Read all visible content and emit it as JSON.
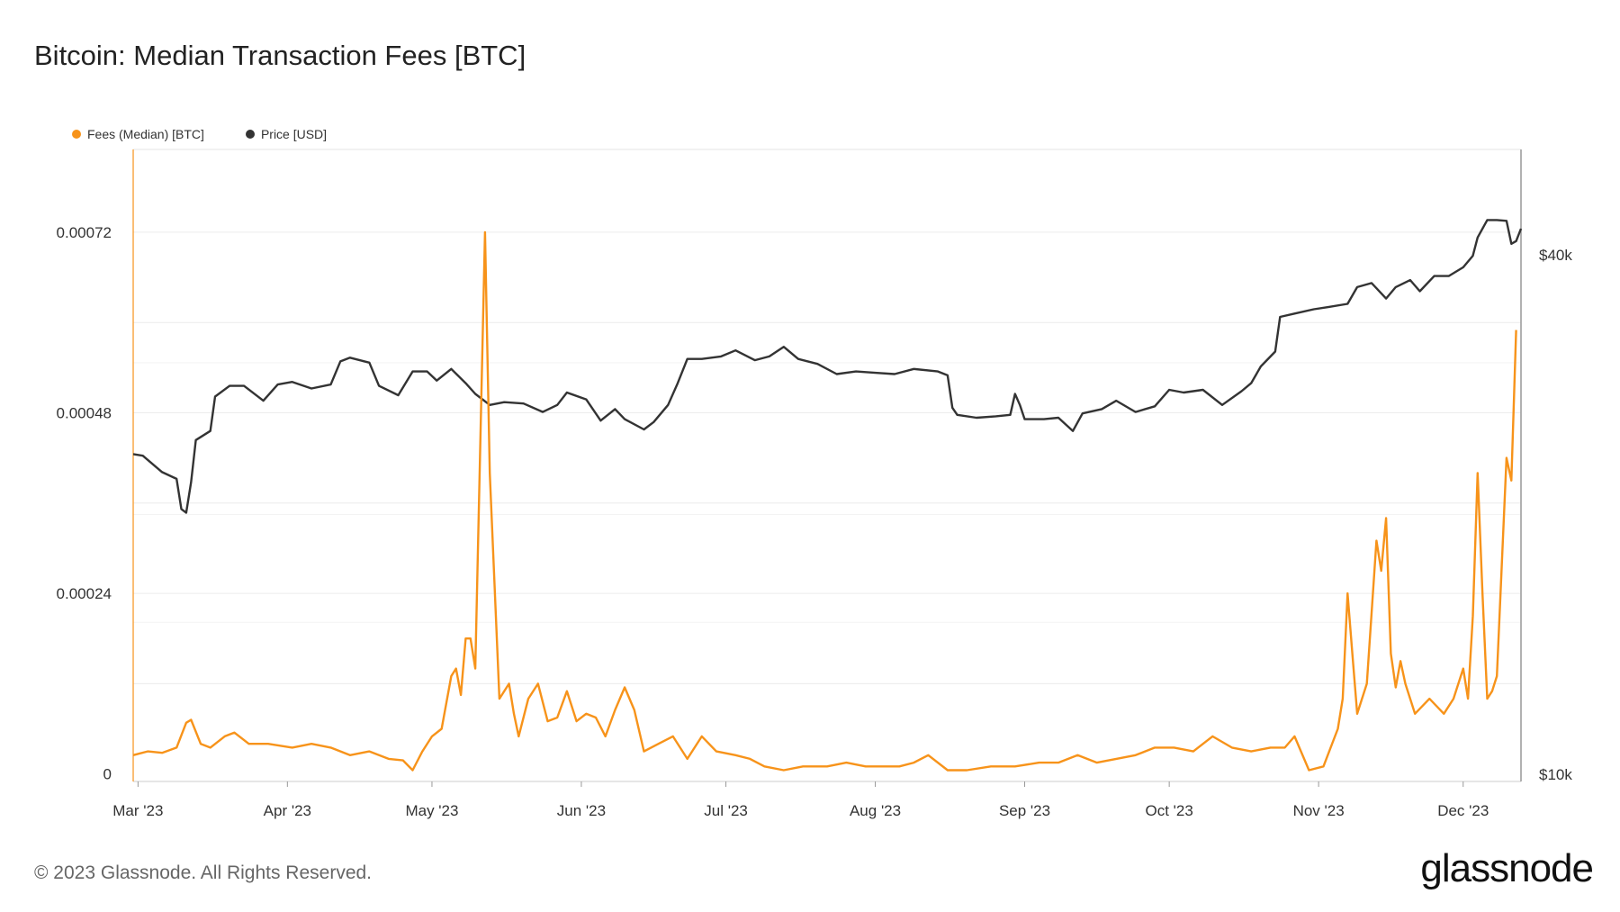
{
  "header": {
    "title": "Bitcoin: Median Transaction Fees [BTC]"
  },
  "footer": {
    "copyright": "© 2023 Glassnode. All Rights Reserved.",
    "logo": "glassnode"
  },
  "colors": {
    "fees": "#f7931a",
    "price": "#333333",
    "grid": "#ececec",
    "axis": "#bbbbbb"
  },
  "chart_data": {
    "type": "line",
    "title": "Bitcoin: Median Transaction Fees [BTC]",
    "legend_position": "top-left",
    "grid": true,
    "x_range": [
      "2023-02-28",
      "2023-12-13"
    ],
    "x_ticks": [
      {
        "label": "Mar '23",
        "date": "2023-03-01"
      },
      {
        "label": "Apr '23",
        "date": "2023-04-01"
      },
      {
        "label": "May '23",
        "date": "2023-05-01"
      },
      {
        "label": "Jun '23",
        "date": "2023-06-01"
      },
      {
        "label": "Jul '23",
        "date": "2023-07-01"
      },
      {
        "label": "Aug '23",
        "date": "2023-08-01"
      },
      {
        "label": "Sep '23",
        "date": "2023-09-01"
      },
      {
        "label": "Oct '23",
        "date": "2023-10-01"
      },
      {
        "label": "Nov '23",
        "date": "2023-11-01"
      },
      {
        "label": "Dec '23",
        "date": "2023-12-01"
      }
    ],
    "y_left": {
      "ticks": [
        {
          "label": "0",
          "value": 0
        },
        {
          "label": "0.00024",
          "value": 0.00024
        },
        {
          "label": "0.00048",
          "value": 0.00048
        },
        {
          "label": "0.00072",
          "value": 0.00072
        }
      ],
      "range": [
        -1e-05,
        0.00083
      ]
    },
    "y_right": {
      "scale": "log",
      "ticks": [
        {
          "label": "$10k",
          "value": 10000
        },
        {
          "label": "$40k",
          "value": 40000
        }
      ],
      "range": [
        10000,
        53000
      ]
    },
    "series": [
      {
        "name": "Fees (Median) [BTC]",
        "axis": "left",
        "points": [
          [
            "2023-02-28",
            2.5e-05
          ],
          [
            "2023-03-03",
            3e-05
          ],
          [
            "2023-03-06",
            2.8e-05
          ],
          [
            "2023-03-09",
            3.5e-05
          ],
          [
            "2023-03-11",
            6.8e-05
          ],
          [
            "2023-03-12",
            7.2e-05
          ],
          [
            "2023-03-14",
            4e-05
          ],
          [
            "2023-03-16",
            3.5e-05
          ],
          [
            "2023-03-19",
            5e-05
          ],
          [
            "2023-03-21",
            5.5e-05
          ],
          [
            "2023-03-24",
            4e-05
          ],
          [
            "2023-03-28",
            4e-05
          ],
          [
            "2023-04-02",
            3.5e-05
          ],
          [
            "2023-04-06",
            4e-05
          ],
          [
            "2023-04-10",
            3.5e-05
          ],
          [
            "2023-04-14",
            2.5e-05
          ],
          [
            "2023-04-18",
            3e-05
          ],
          [
            "2023-04-22",
            2e-05
          ],
          [
            "2023-04-25",
            1.8e-05
          ],
          [
            "2023-04-27",
            5e-06
          ],
          [
            "2023-04-29",
            3e-05
          ],
          [
            "2023-05-01",
            5e-05
          ],
          [
            "2023-05-03",
            6e-05
          ],
          [
            "2023-05-05",
            0.00013
          ],
          [
            "2023-05-06",
            0.00014
          ],
          [
            "2023-05-07",
            0.000105
          ],
          [
            "2023-05-08",
            0.00018
          ],
          [
            "2023-05-09",
            0.00018
          ],
          [
            "2023-05-10",
            0.00014
          ],
          [
            "2023-05-12",
            0.00072
          ],
          [
            "2023-05-13",
            0.0004
          ],
          [
            "2023-05-15",
            0.0001
          ],
          [
            "2023-05-17",
            0.00012
          ],
          [
            "2023-05-18",
            8e-05
          ],
          [
            "2023-05-19",
            5e-05
          ],
          [
            "2023-05-21",
            0.0001
          ],
          [
            "2023-05-23",
            0.00012
          ],
          [
            "2023-05-25",
            7e-05
          ],
          [
            "2023-05-27",
            7.5e-05
          ],
          [
            "2023-05-29",
            0.00011
          ],
          [
            "2023-05-31",
            7e-05
          ],
          [
            "2023-06-02",
            8e-05
          ],
          [
            "2023-06-04",
            7.5e-05
          ],
          [
            "2023-06-06",
            5e-05
          ],
          [
            "2023-06-08",
            8.5e-05
          ],
          [
            "2023-06-10",
            0.000115
          ],
          [
            "2023-06-12",
            8.5e-05
          ],
          [
            "2023-06-14",
            3e-05
          ],
          [
            "2023-06-17",
            4e-05
          ],
          [
            "2023-06-20",
            5e-05
          ],
          [
            "2023-06-23",
            2e-05
          ],
          [
            "2023-06-26",
            5e-05
          ],
          [
            "2023-06-29",
            3e-05
          ],
          [
            "2023-07-03",
            2.5e-05
          ],
          [
            "2023-07-06",
            2e-05
          ],
          [
            "2023-07-09",
            1e-05
          ],
          [
            "2023-07-13",
            5e-06
          ],
          [
            "2023-07-17",
            1e-05
          ],
          [
            "2023-07-22",
            1e-05
          ],
          [
            "2023-07-26",
            1.5e-05
          ],
          [
            "2023-07-30",
            1e-05
          ],
          [
            "2023-08-03",
            1e-05
          ],
          [
            "2023-08-06",
            1e-05
          ],
          [
            "2023-08-09",
            1.5e-05
          ],
          [
            "2023-08-12",
            2.5e-05
          ],
          [
            "2023-08-16",
            5e-06
          ],
          [
            "2023-08-20",
            5e-06
          ],
          [
            "2023-08-25",
            1e-05
          ],
          [
            "2023-08-30",
            1e-05
          ],
          [
            "2023-09-04",
            1.5e-05
          ],
          [
            "2023-09-08",
            1.5e-05
          ],
          [
            "2023-09-12",
            2.5e-05
          ],
          [
            "2023-09-16",
            1.5e-05
          ],
          [
            "2023-09-20",
            2e-05
          ],
          [
            "2023-09-24",
            2.5e-05
          ],
          [
            "2023-09-28",
            3.5e-05
          ],
          [
            "2023-10-02",
            3.5e-05
          ],
          [
            "2023-10-06",
            3e-05
          ],
          [
            "2023-10-10",
            5e-05
          ],
          [
            "2023-10-14",
            3.5e-05
          ],
          [
            "2023-10-18",
            3e-05
          ],
          [
            "2023-10-22",
            3.5e-05
          ],
          [
            "2023-10-25",
            3.5e-05
          ],
          [
            "2023-10-27",
            5e-05
          ],
          [
            "2023-10-30",
            5e-06
          ],
          [
            "2023-11-02",
            1e-05
          ],
          [
            "2023-11-05",
            6e-05
          ],
          [
            "2023-11-06",
            0.0001
          ],
          [
            "2023-11-07",
            0.00024
          ],
          [
            "2023-11-08",
            0.00016
          ],
          [
            "2023-11-09",
            8e-05
          ],
          [
            "2023-11-11",
            0.00012
          ],
          [
            "2023-11-13",
            0.00031
          ],
          [
            "2023-11-14",
            0.00027
          ],
          [
            "2023-11-15",
            0.00034
          ],
          [
            "2023-11-16",
            0.00016
          ],
          [
            "2023-11-17",
            0.000115
          ],
          [
            "2023-11-18",
            0.00015
          ],
          [
            "2023-11-19",
            0.00012
          ],
          [
            "2023-11-21",
            8e-05
          ],
          [
            "2023-11-24",
            0.0001
          ],
          [
            "2023-11-27",
            8e-05
          ],
          [
            "2023-11-29",
            0.0001
          ],
          [
            "2023-12-01",
            0.00014
          ],
          [
            "2023-12-02",
            0.0001
          ],
          [
            "2023-12-03",
            0.00021
          ],
          [
            "2023-12-04",
            0.0004
          ],
          [
            "2023-12-05",
            0.00024
          ],
          [
            "2023-12-06",
            0.0001
          ],
          [
            "2023-12-07",
            0.00011
          ],
          [
            "2023-12-08",
            0.00013
          ],
          [
            "2023-12-10",
            0.00042
          ],
          [
            "2023-12-11",
            0.00039
          ],
          [
            "2023-12-12",
            0.00059
          ]
        ]
      },
      {
        "name": "Price [USD]",
        "axis": "right",
        "points": [
          [
            "2023-02-28",
            23500
          ],
          [
            "2023-03-02",
            23400
          ],
          [
            "2023-03-06",
            22400
          ],
          [
            "2023-03-09",
            22000
          ],
          [
            "2023-03-10",
            20300
          ],
          [
            "2023-03-11",
            20100
          ],
          [
            "2023-03-12",
            21800
          ],
          [
            "2023-03-13",
            24400
          ],
          [
            "2023-03-16",
            25000
          ],
          [
            "2023-03-17",
            27400
          ],
          [
            "2023-03-20",
            28200
          ],
          [
            "2023-03-23",
            28200
          ],
          [
            "2023-03-27",
            27100
          ],
          [
            "2023-03-30",
            28300
          ],
          [
            "2023-04-02",
            28500
          ],
          [
            "2023-04-06",
            28000
          ],
          [
            "2023-04-10",
            28300
          ],
          [
            "2023-04-12",
            30100
          ],
          [
            "2023-04-14",
            30400
          ],
          [
            "2023-04-18",
            30000
          ],
          [
            "2023-04-20",
            28200
          ],
          [
            "2023-04-24",
            27500
          ],
          [
            "2023-04-27",
            29300
          ],
          [
            "2023-04-30",
            29300
          ],
          [
            "2023-05-02",
            28600
          ],
          [
            "2023-05-05",
            29500
          ],
          [
            "2023-05-08",
            28400
          ],
          [
            "2023-05-10",
            27600
          ],
          [
            "2023-05-13",
            26800
          ],
          [
            "2023-05-16",
            27000
          ],
          [
            "2023-05-20",
            26900
          ],
          [
            "2023-05-24",
            26300
          ],
          [
            "2023-05-27",
            26800
          ],
          [
            "2023-05-29",
            27700
          ],
          [
            "2023-06-02",
            27200
          ],
          [
            "2023-06-05",
            25700
          ],
          [
            "2023-06-08",
            26500
          ],
          [
            "2023-06-10",
            25800
          ],
          [
            "2023-06-14",
            25100
          ],
          [
            "2023-06-16",
            25600
          ],
          [
            "2023-06-19",
            26800
          ],
          [
            "2023-06-21",
            28400
          ],
          [
            "2023-06-23",
            30300
          ],
          [
            "2023-06-26",
            30300
          ],
          [
            "2023-06-30",
            30500
          ],
          [
            "2023-07-03",
            31000
          ],
          [
            "2023-07-07",
            30200
          ],
          [
            "2023-07-10",
            30500
          ],
          [
            "2023-07-13",
            31300
          ],
          [
            "2023-07-16",
            30300
          ],
          [
            "2023-07-20",
            29900
          ],
          [
            "2023-07-24",
            29100
          ],
          [
            "2023-07-28",
            29300
          ],
          [
            "2023-08-01",
            29200
          ],
          [
            "2023-08-05",
            29100
          ],
          [
            "2023-08-09",
            29500
          ],
          [
            "2023-08-14",
            29300
          ],
          [
            "2023-08-16",
            29000
          ],
          [
            "2023-08-17",
            26600
          ],
          [
            "2023-08-18",
            26100
          ],
          [
            "2023-08-22",
            25900
          ],
          [
            "2023-08-26",
            26000
          ],
          [
            "2023-08-29",
            26100
          ],
          [
            "2023-08-30",
            27600
          ],
          [
            "2023-08-31",
            26800
          ],
          [
            "2023-09-01",
            25800
          ],
          [
            "2023-09-05",
            25800
          ],
          [
            "2023-09-08",
            25900
          ],
          [
            "2023-09-11",
            25000
          ],
          [
            "2023-09-13",
            26200
          ],
          [
            "2023-09-17",
            26500
          ],
          [
            "2023-09-20",
            27100
          ],
          [
            "2023-09-24",
            26300
          ],
          [
            "2023-09-28",
            26700
          ],
          [
            "2023-10-01",
            27900
          ],
          [
            "2023-10-04",
            27700
          ],
          [
            "2023-10-08",
            27900
          ],
          [
            "2023-10-12",
            26800
          ],
          [
            "2023-10-16",
            27800
          ],
          [
            "2023-10-18",
            28400
          ],
          [
            "2023-10-20",
            29700
          ],
          [
            "2023-10-23",
            30900
          ],
          [
            "2023-10-24",
            33900
          ],
          [
            "2023-10-27",
            34200
          ],
          [
            "2023-10-31",
            34600
          ],
          [
            "2023-11-03",
            34800
          ],
          [
            "2023-11-07",
            35100
          ],
          [
            "2023-11-09",
            36700
          ],
          [
            "2023-11-12",
            37100
          ],
          [
            "2023-11-15",
            35600
          ],
          [
            "2023-11-17",
            36700
          ],
          [
            "2023-11-20",
            37400
          ],
          [
            "2023-11-22",
            36300
          ],
          [
            "2023-11-25",
            37800
          ],
          [
            "2023-11-28",
            37800
          ],
          [
            "2023-12-01",
            38700
          ],
          [
            "2023-12-03",
            39900
          ],
          [
            "2023-12-04",
            41900
          ],
          [
            "2023-12-06",
            43900
          ],
          [
            "2023-12-08",
            43900
          ],
          [
            "2023-12-10",
            43800
          ],
          [
            "2023-12-11",
            41200
          ],
          [
            "2023-12-12",
            41500
          ],
          [
            "2023-12-13",
            42900
          ]
        ]
      }
    ]
  }
}
